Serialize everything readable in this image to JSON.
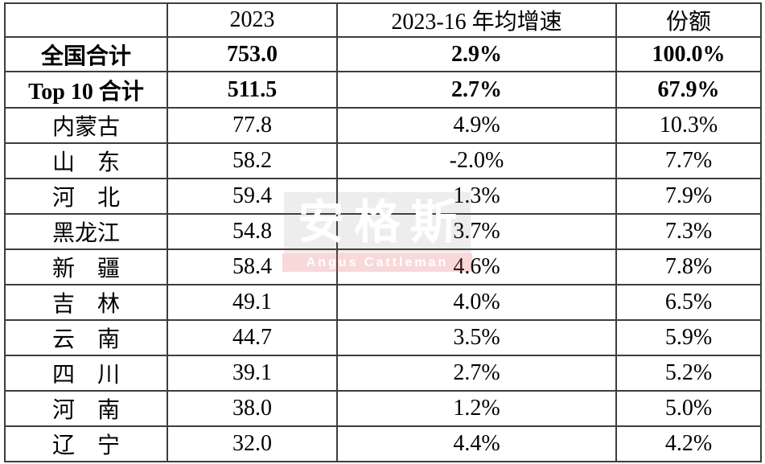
{
  "watermark": {
    "cn": "安格斯",
    "en": "Angus Cattleman"
  },
  "colors": {
    "table_border": "#3d3d3d",
    "text": "#000000",
    "watermark_gray_bg": "#e8e8e8",
    "watermark_band_bg": "#f6cfcf",
    "watermark_text": "#ffffff"
  },
  "chart_data": {
    "type": "table",
    "columns": [
      "",
      "2023",
      "2023-16 年均增速",
      "份额"
    ],
    "total_rows": [
      {
        "cells": [
          "全国合计",
          "753.0",
          "2.9%",
          "100.0%"
        ]
      },
      {
        "cells": [
          "Top 10 合计",
          "511.5",
          "2.7%",
          "67.9%"
        ]
      }
    ],
    "province_rows": [
      {
        "cells": [
          "内蒙古",
          "77.8",
          "4.9%",
          "10.3%"
        ]
      },
      {
        "cells": [
          "山　东",
          "58.2",
          "-2.0%",
          "7.7%"
        ]
      },
      {
        "cells": [
          "河　北",
          "59.4",
          "1.3%",
          "7.9%"
        ]
      },
      {
        "cells": [
          "黑龙江",
          "54.8",
          "3.7%",
          "7.3%"
        ]
      },
      {
        "cells": [
          "新　疆",
          "58.4",
          "4.6%",
          "7.8%"
        ]
      },
      {
        "cells": [
          "吉　林",
          "49.1",
          "4.0%",
          "6.5%"
        ]
      },
      {
        "cells": [
          "云　南",
          "44.7",
          "3.5%",
          "5.9%"
        ]
      },
      {
        "cells": [
          "四　川",
          "39.1",
          "2.7%",
          "5.2%"
        ]
      },
      {
        "cells": [
          "河　南",
          "38.0",
          "1.2%",
          "5.0%"
        ]
      },
      {
        "cells": [
          "辽　宁",
          "32.0",
          "4.4%",
          "4.2%"
        ]
      }
    ]
  }
}
